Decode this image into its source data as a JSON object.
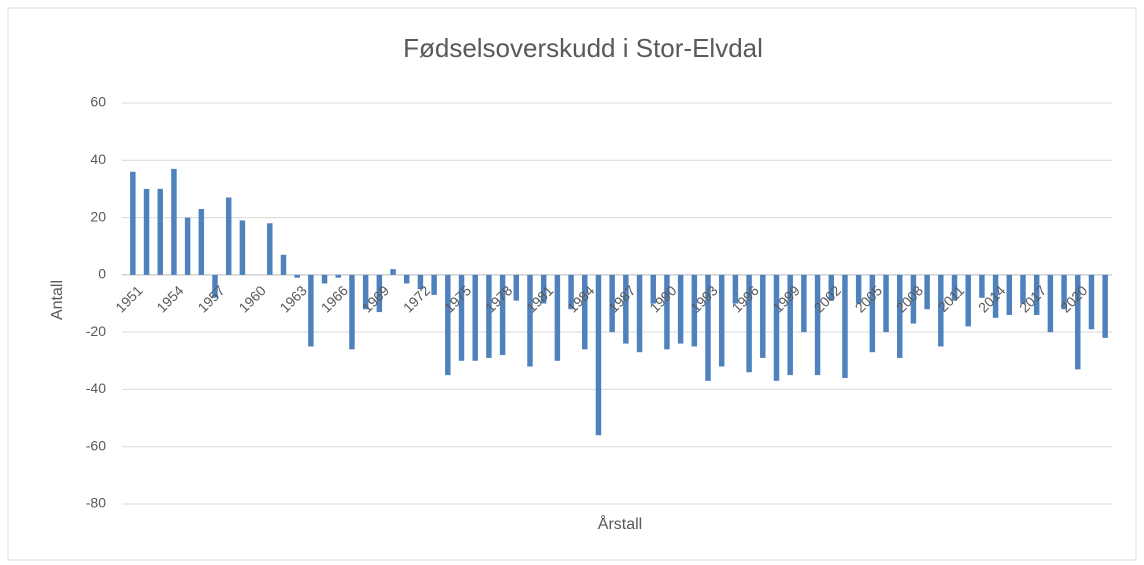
{
  "chart_data": {
    "type": "bar",
    "title": "Fødselsoverskudd i Stor-Elvdal",
    "x_label": "Årstall",
    "y_label": "Antall",
    "categories": [
      "1951",
      null,
      null,
      "1954",
      null,
      null,
      "1957",
      null,
      null,
      "1960",
      null,
      null,
      "1963",
      null,
      null,
      "1966",
      null,
      null,
      "1969",
      null,
      null,
      "1972",
      null,
      null,
      "1975",
      null,
      null,
      "1978",
      null,
      null,
      "1981",
      null,
      null,
      "1984",
      null,
      null,
      "1987",
      null,
      null,
      "1990",
      null,
      null,
      "1993",
      null,
      null,
      "1996",
      null,
      null,
      "1999",
      null,
      null,
      "2002",
      null,
      null,
      "2005",
      null,
      null,
      "2008",
      null,
      null,
      "2011",
      null,
      null,
      "2014",
      null,
      null,
      "2017",
      null,
      null,
      "2020",
      null,
      null
    ],
    "values": [
      36,
      30,
      30,
      37,
      20,
      23,
      -8,
      27,
      19,
      0,
      18,
      7,
      -1,
      -25,
      -3,
      -1,
      -26,
      -12,
      -13,
      2,
      -3,
      -5,
      -7,
      -35,
      -30,
      -30,
      -29,
      -28,
      -9,
      -32,
      -10,
      -30,
      -12,
      -26,
      -56,
      -20,
      -24,
      -27,
      -10,
      -26,
      -24,
      -25,
      -37,
      -32,
      -10,
      -34,
      -29,
      -37,
      -35,
      -20,
      -35,
      -9,
      -36,
      -10,
      -27,
      -20,
      -29,
      -17,
      -12,
      -25,
      -9,
      -18,
      -8,
      -15,
      -14,
      -10,
      -14,
      -20,
      -12,
      -33,
      -19,
      -22
    ],
    "color": "#4f81bd",
    "ylim": [
      -80,
      60
    ],
    "yticks": [
      -80,
      -60,
      -40,
      -20,
      0,
      20,
      40,
      60
    ],
    "grid": true
  }
}
